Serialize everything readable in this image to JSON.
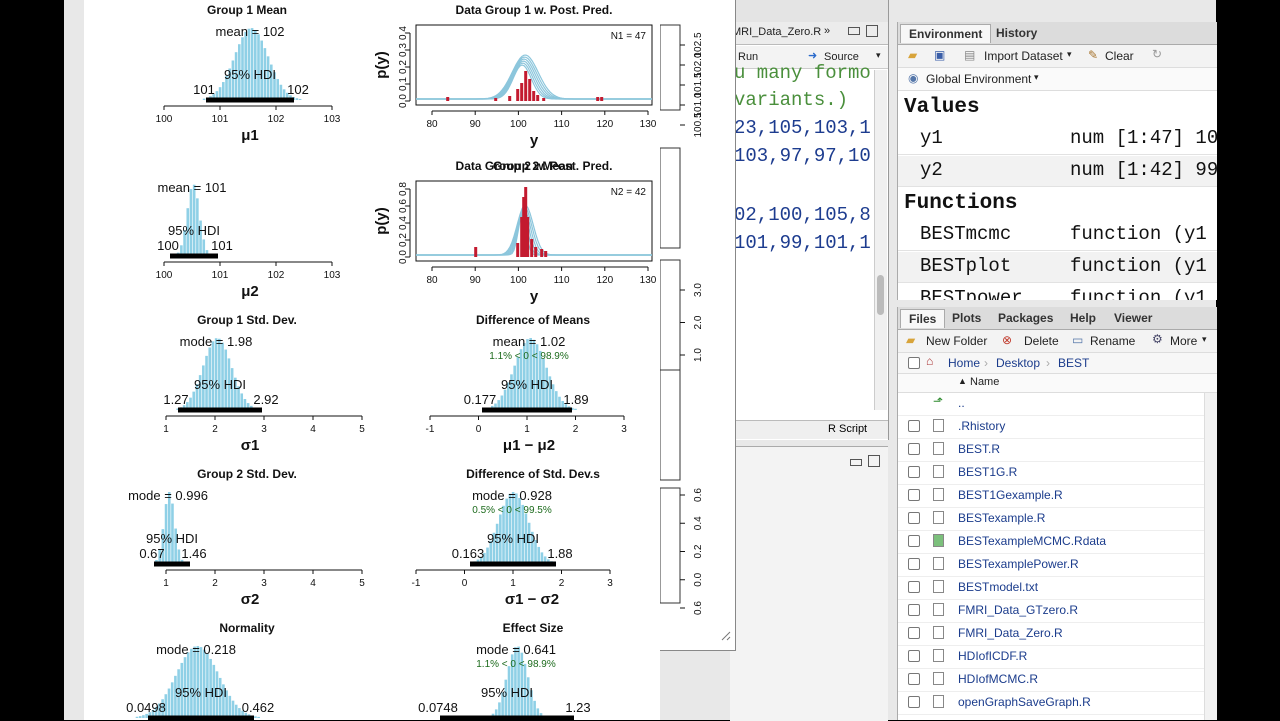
{
  "editor": {
    "tab_label": "MRI_Data_Zero.R",
    "run_label": "Run",
    "source_label": "Source",
    "code_lines": [
      {
        "text": "u many formo",
        "kind": "comment"
      },
      {
        "text": "variants.)",
        "kind": "comment"
      },
      {
        "text": "23,105,103,1",
        "kind": "code"
      },
      {
        "text": "103,97,97,10",
        "kind": "code"
      },
      {
        "text": "02,100,105,8",
        "kind": "code"
      },
      {
        "text": "101,99,101,1",
        "kind": "code"
      }
    ],
    "status_label": "R Script"
  },
  "environment": {
    "tabs": [
      "Environment",
      "History"
    ],
    "import_label": "Import Dataset",
    "clear_label": "Clear",
    "scope_label": "Global Environment",
    "values_heading": "Values",
    "values": [
      {
        "name": "y1",
        "value": "num [1:47] 10"
      },
      {
        "name": "y2",
        "value": "num [1:42] 99"
      }
    ],
    "functions_heading": "Functions",
    "functions": [
      {
        "name": "BESTmcmc",
        "value": "function (y1"
      },
      {
        "name": "BESTplot",
        "value": "function (y1"
      },
      {
        "name": "BESTpower",
        "value": "function (y1"
      }
    ]
  },
  "files": {
    "tabs": [
      "Files",
      "Plots",
      "Packages",
      "Help",
      "Viewer"
    ],
    "new_folder_label": "New Folder",
    "delete_label": "Delete",
    "rename_label": "Rename",
    "more_label": "More",
    "breadcrumb": [
      "Home",
      "Desktop",
      "BEST"
    ],
    "name_header": "Name",
    "up_label": "..",
    "items": [
      ".Rhistory",
      "BEST.R",
      "BEST1G.R",
      "BEST1Gexample.R",
      "BESTexample.R",
      "BESTexampleMCMC.Rdata",
      "BESTexamplePower.R",
      "BESTmodel.txt",
      "FMRI_Data_GTzero.R",
      "FMRI_Data_Zero.R",
      "HDIofICDF.R",
      "HDIofMCMC.R",
      "openGraphSaveGraph.R"
    ]
  },
  "plots": {
    "panels": [
      {
        "title": "Group 1 Mean",
        "stat": "mean = 102",
        "hdi_low": "101",
        "hdi_high": "102",
        "ticks": [
          "100",
          "101",
          "102",
          "103"
        ],
        "xlabel": "μ1",
        "compare": ""
      },
      {
        "title": "Group 2 Mean",
        "stat": "mean = 101",
        "hdi_low": "100",
        "hdi_high": "101",
        "ticks": [
          "100",
          "101",
          "102",
          "103"
        ],
        "xlabel": "μ2",
        "compare": ""
      },
      {
        "title": "Group 1 Std. Dev.",
        "stat": "mode = 1.98",
        "hdi_low": "1.27",
        "hdi_high": "2.92",
        "ticks": [
          "1",
          "2",
          "3",
          "4",
          "5"
        ],
        "xlabel": "σ1",
        "compare": ""
      },
      {
        "title": "Difference of Means",
        "stat": "mean = 1.02",
        "hdi_low": "0.177",
        "hdi_high": "1.89",
        "ticks": [
          "-1",
          "0",
          "1",
          "2",
          "3"
        ],
        "xlabel": "μ1 − μ2",
        "compare": "1.1% < 0 < 98.9%"
      },
      {
        "title": "Group 2 Std. Dev.",
        "stat": "mode = 0.996",
        "hdi_low": "0.67",
        "hdi_high": "1.46",
        "ticks": [
          "1",
          "2",
          "3",
          "4",
          "5"
        ],
        "xlabel": "σ2",
        "compare": ""
      },
      {
        "title": "Difference of Std. Dev.s",
        "stat": "mode = 0.928",
        "hdi_low": "0.163",
        "hdi_high": "1.88",
        "ticks": [
          "-1",
          "0",
          "1",
          "2",
          "3"
        ],
        "xlabel": "σ1 − σ2",
        "compare": "0.5% < 0 < 99.5%"
      },
      {
        "title": "Normality",
        "stat": "mode = 0.218",
        "hdi_low": "0.0498",
        "hdi_high": "0.462",
        "ticks": [],
        "xlabel": "",
        "compare": ""
      },
      {
        "title": "Effect Size",
        "stat": "mode = 0.641",
        "hdi_low": "0.0748",
        "hdi_high": "1.23",
        "ticks": [],
        "xlabel": "",
        "compare": "1.1% < 0 < 98.9%"
      }
    ],
    "hdi_label": "95% HDI",
    "pred": [
      {
        "title": "Data Group 1 w. Post. Pred.",
        "n_label": "N1 = 47",
        "ylabel": "p(y)",
        "xlabel": "y",
        "ticks": [
          "80",
          "90",
          "100",
          "110",
          "120",
          "130"
        ],
        "yticks": [
          "0.0",
          "0.1",
          "0.2",
          "0.3",
          "0.4"
        ]
      },
      {
        "title": "Data Group 2 w. Post. Pred.",
        "n_label": "N2 = 42",
        "ylabel": "p(y)",
        "xlabel": "y",
        "ticks": [
          "80",
          "90",
          "100",
          "110",
          "120",
          "130"
        ],
        "yticks": [
          "0.0",
          "0.2",
          "0.4",
          "0.6",
          "0.8"
        ]
      }
    ],
    "side_ticks_top": [
      "102.5",
      "102.0",
      "101.5",
      "101.0",
      "100.5"
    ],
    "side_ticks_mid": [
      "3.0",
      "2.0",
      "1.0"
    ],
    "side_ticks_bot": [
      "0.6",
      "0.4",
      "0.2",
      "0.0",
      "0.6"
    ]
  },
  "colors": {
    "hist": "#8fd0e6",
    "pred": "#c31a2f",
    "curve": "#8cc6dc"
  }
}
